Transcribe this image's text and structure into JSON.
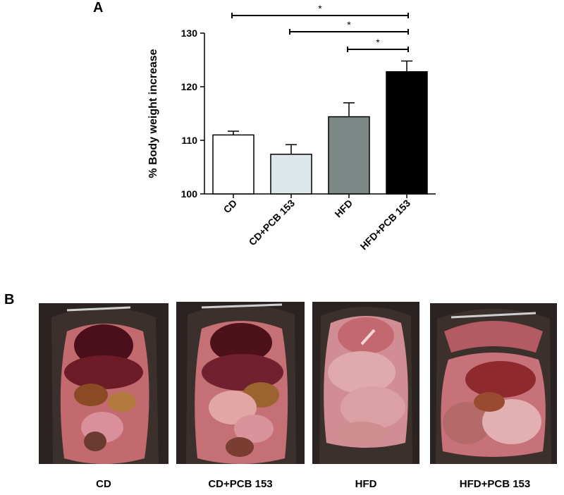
{
  "panel_a": {
    "label": "A"
  },
  "panel_b": {
    "label": "B"
  },
  "chart_data": {
    "type": "bar",
    "categories": [
      "CD",
      "CD+PCB 153",
      "HFD",
      "HFD+PCB 153"
    ],
    "values": [
      111.0,
      107.4,
      114.4,
      122.8
    ],
    "errors": [
      0.7,
      1.8,
      2.6,
      2.0
    ],
    "ylabel": "% Body weight increase",
    "ylim": [
      100,
      130
    ],
    "yticks": [
      100,
      110,
      120,
      130
    ],
    "bar_colors": [
      "#ffffff",
      "#dde6e8",
      "#7b8886",
      "#000000"
    ],
    "significance": [
      {
        "from": "CD",
        "to": "HFD+PCB 153",
        "label": "*"
      },
      {
        "from": "CD+PCB 153",
        "to": "HFD+PCB 153",
        "label": "*"
      },
      {
        "from": "HFD",
        "to": "HFD+PCB 153",
        "label": "*"
      }
    ]
  },
  "photos": [
    {
      "caption": "CD"
    },
    {
      "caption": "CD+PCB 153"
    },
    {
      "caption": "HFD"
    },
    {
      "caption": "HFD+PCB 153"
    }
  ]
}
